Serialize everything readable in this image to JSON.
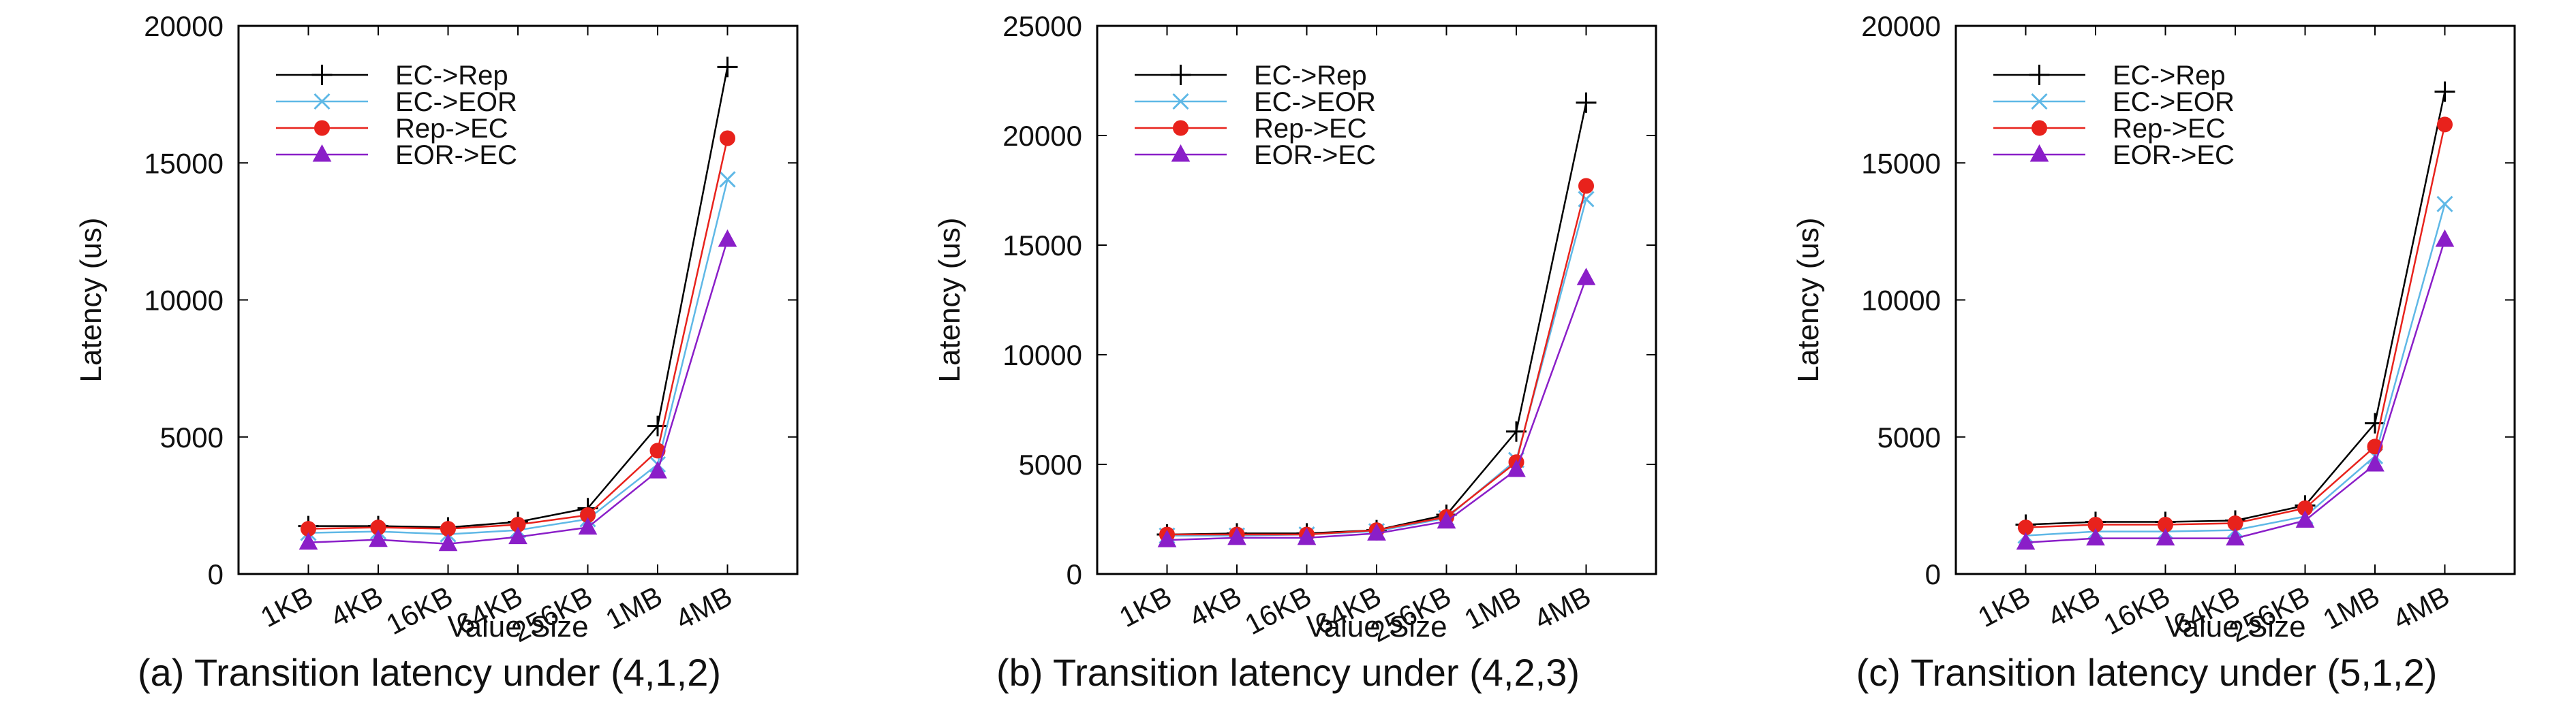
{
  "chart_data": [
    {
      "type": "line",
      "title": "",
      "caption": "(a) Transition latency under (4,1,2)",
      "xlabel": "Value Size",
      "ylabel": "Latency (us)",
      "categories": [
        "1KB",
        "4KB",
        "16KB",
        "64KB",
        "256KB",
        "1MB",
        "4MB"
      ],
      "ylim": [
        0,
        20000
      ],
      "yticks": [
        0,
        5000,
        10000,
        15000,
        20000
      ],
      "legend_position": "top-left",
      "grid": false,
      "series": [
        {
          "name": "EC->Rep",
          "marker": "plus",
          "color": "#000000",
          "values": [
            1750,
            1750,
            1700,
            1900,
            2400,
            5400,
            18500
          ]
        },
        {
          "name": "EC->EOR",
          "marker": "cross",
          "color": "#5fb8e6",
          "values": [
            1500,
            1550,
            1450,
            1600,
            2000,
            4000,
            14400
          ]
        },
        {
          "name": "Rep->EC",
          "marker": "circle",
          "color": "#e8221c",
          "values": [
            1650,
            1700,
            1650,
            1800,
            2150,
            4500,
            15900
          ]
        },
        {
          "name": "EOR->EC",
          "marker": "triangle",
          "color": "#8a1ec8",
          "values": [
            1150,
            1250,
            1100,
            1350,
            1700,
            3750,
            12200
          ]
        }
      ]
    },
    {
      "type": "line",
      "title": "",
      "caption": "(b) Transition latency under (4,2,3)",
      "xlabel": "Value Size",
      "ylabel": "Latency (us)",
      "categories": [
        "1KB",
        "4KB",
        "16KB",
        "64KB",
        "256KB",
        "1MB",
        "4MB"
      ],
      "ylim": [
        0,
        25000
      ],
      "yticks": [
        0,
        5000,
        10000,
        15000,
        20000,
        25000
      ],
      "legend_position": "top-left",
      "grid": false,
      "series": [
        {
          "name": "EC->Rep",
          "marker": "plus",
          "color": "#000000",
          "values": [
            1800,
            1850,
            1850,
            2000,
            2700,
            6500,
            21500
          ]
        },
        {
          "name": "EC->EOR",
          "marker": "cross",
          "color": "#5fb8e6",
          "values": [
            1750,
            1750,
            1800,
            1950,
            2550,
            5200,
            17100
          ]
        },
        {
          "name": "Rep->EC",
          "marker": "circle",
          "color": "#e8221c",
          "values": [
            1800,
            1800,
            1800,
            2000,
            2600,
            5100,
            17700
          ]
        },
        {
          "name": "EOR->EC",
          "marker": "triangle",
          "color": "#8a1ec8",
          "values": [
            1550,
            1650,
            1650,
            1850,
            2400,
            4750,
            13500
          ]
        }
      ]
    },
    {
      "type": "line",
      "title": "",
      "caption": "(c) Transition latency under (5,1,2)",
      "xlabel": "Value Size",
      "ylabel": "Latency (us)",
      "categories": [
        "1KB",
        "4KB",
        "16KB",
        "64KB",
        "256KB",
        "1MB",
        "4MB"
      ],
      "ylim": [
        0,
        20000
      ],
      "yticks": [
        0,
        5000,
        10000,
        15000,
        20000
      ],
      "legend_position": "top-left",
      "grid": false,
      "series": [
        {
          "name": "EC->Rep",
          "marker": "plus",
          "color": "#000000",
          "values": [
            1800,
            1900,
            1900,
            1950,
            2500,
            5500,
            17600
          ]
        },
        {
          "name": "EC->EOR",
          "marker": "cross",
          "color": "#5fb8e6",
          "values": [
            1400,
            1550,
            1550,
            1600,
            2100,
            4300,
            13500
          ]
        },
        {
          "name": "Rep->EC",
          "marker": "circle",
          "color": "#e8221c",
          "values": [
            1700,
            1800,
            1800,
            1850,
            2400,
            4650,
            16400
          ]
        },
        {
          "name": "EOR->EC",
          "marker": "triangle",
          "color": "#8a1ec8",
          "values": [
            1150,
            1300,
            1300,
            1300,
            1950,
            4000,
            12200
          ]
        }
      ]
    }
  ]
}
